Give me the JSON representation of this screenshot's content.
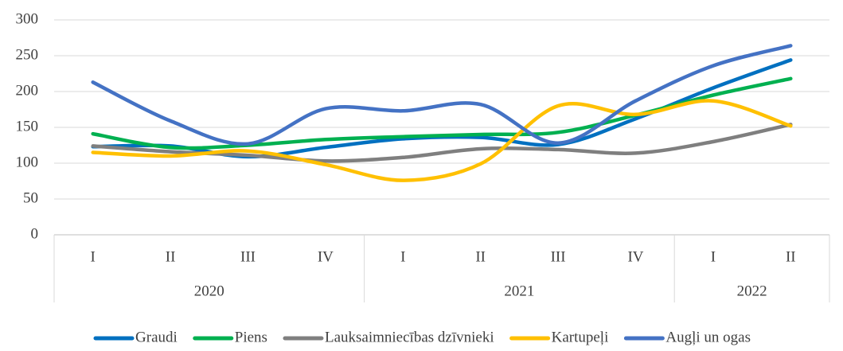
{
  "chart_data": {
    "type": "line",
    "categories": [
      "I",
      "II",
      "III",
      "IV",
      "I",
      "II",
      "III",
      "IV",
      "I",
      "II"
    ],
    "years": [
      "2020",
      null,
      null,
      null,
      "2021",
      null,
      null,
      null,
      "2022",
      null
    ],
    "series": [
      {
        "name": "Graudi",
        "color": "#0070c0",
        "values": [
          123,
          124,
          109,
          122,
          134,
          136,
          126,
          162,
          205,
          244
        ]
      },
      {
        "name": "Piens",
        "color": "#00b050",
        "values": [
          141,
          122,
          125,
          133,
          137,
          140,
          143,
          167,
          195,
          218
        ]
      },
      {
        "name": "Lauksaimniecības dzīvnieki",
        "color": "#7f7f7f",
        "values": [
          124,
          116,
          111,
          103,
          108,
          120,
          119,
          114,
          130,
          154
        ]
      },
      {
        "name": "Kartupeļi",
        "color": "#ffc000",
        "values": [
          115,
          110,
          117,
          98,
          76,
          99,
          180,
          168,
          187,
          152
        ]
      },
      {
        "name": "Augļi un ogas",
        "color": "#4472c4",
        "values": [
          213,
          159,
          127,
          176,
          173,
          182,
          128,
          187,
          236,
          264
        ]
      }
    ],
    "ylim": [
      0,
      300
    ],
    "yticks": [
      0,
      50,
      100,
      150,
      200,
      250,
      300
    ],
    "grid": true,
    "smooth": true,
    "legend": "bottom"
  }
}
